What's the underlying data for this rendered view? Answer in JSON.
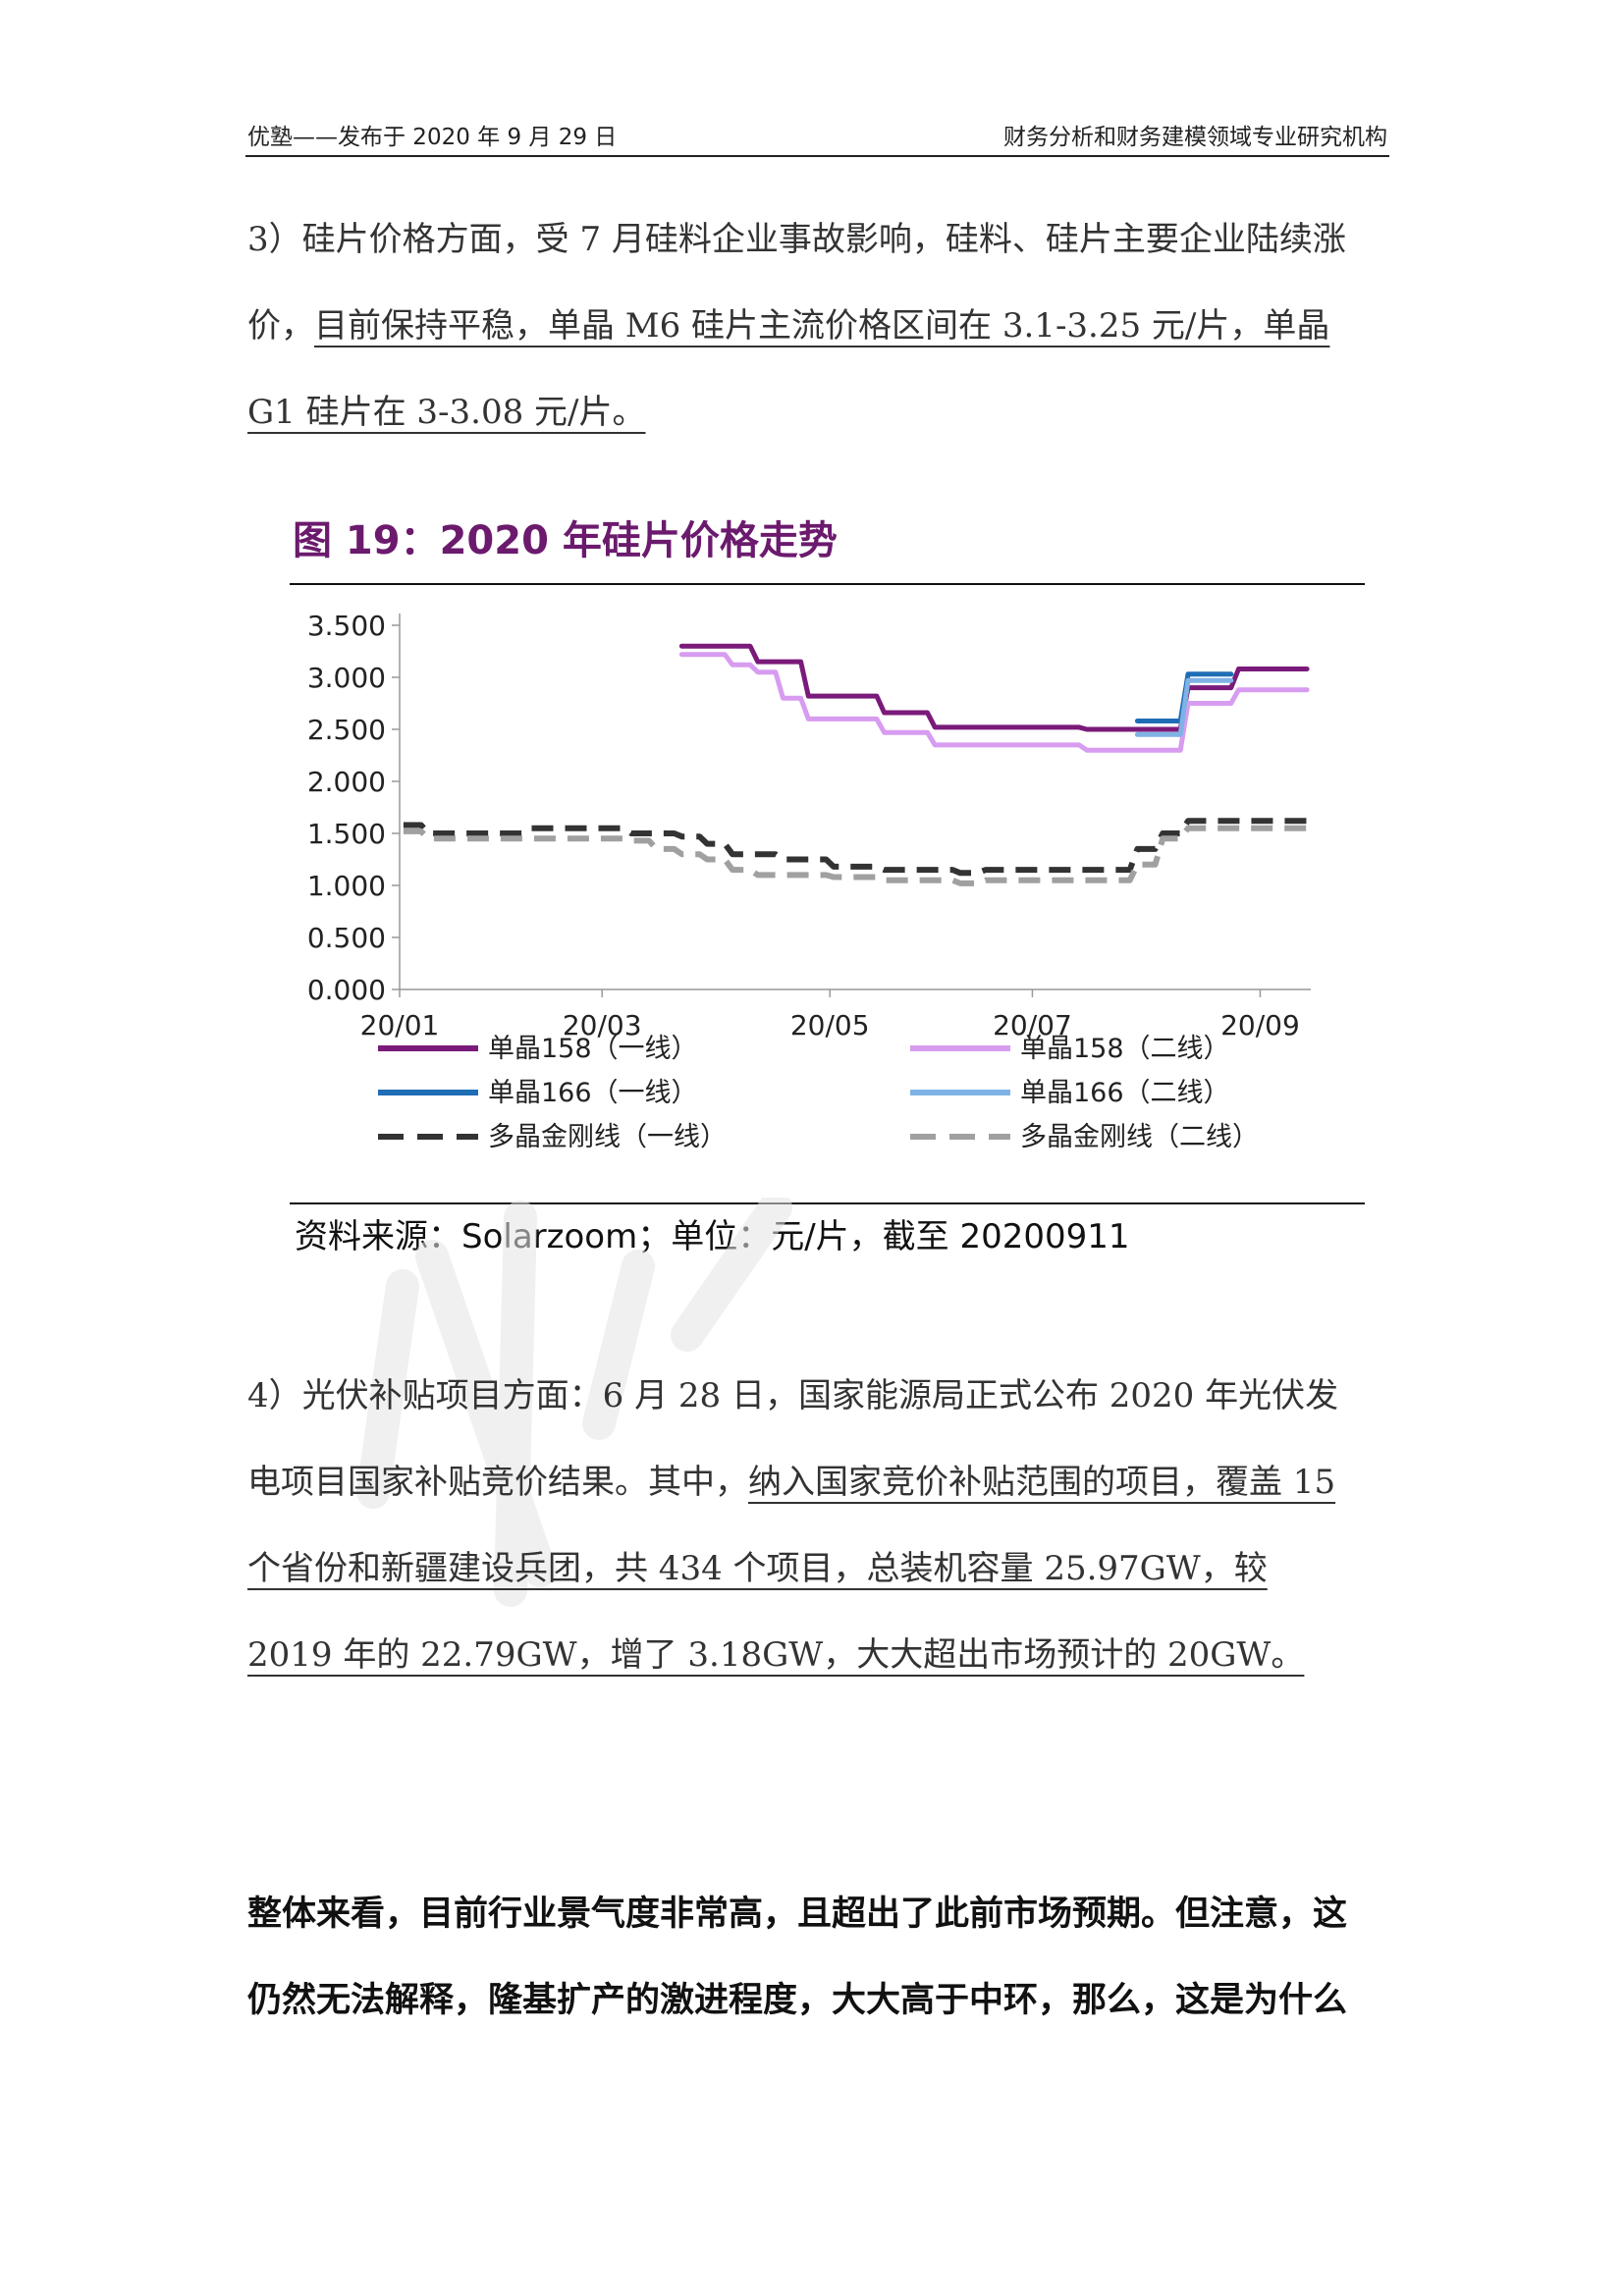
{
  "header": {
    "left": "优塾——发布于 2020 年 9 月 29 日",
    "right": "财务分析和财务建模领域专业研究机构"
  },
  "para3": {
    "plain": "3）硅片价格方面，受 7 月硅料企业事故影响，硅料、硅片主要企业陆续涨价，",
    "underlined": "目前保持平稳，单晶 M6 硅片主流价格区间在 3.1-3.25 元/片，单晶 G1 硅片在 3-3.08 元/片。"
  },
  "figure": {
    "title": "图 19：2020 年硅片价格走势",
    "source": "资料来源：Solarzoom；单位：元/片，截至 20200911"
  },
  "chart_data": {
    "type": "line",
    "x": [
      "20/01/02",
      "20/01/09",
      "20/01/16",
      "20/01/23",
      "20/02/06",
      "20/02/13",
      "20/02/20",
      "20/02/27",
      "20/03/05",
      "20/03/12",
      "20/03/19",
      "20/03/26",
      "20/04/02",
      "20/04/09",
      "20/04/16",
      "20/04/23",
      "20/04/30",
      "20/05/07",
      "20/05/14",
      "20/05/21",
      "20/05/28",
      "20/06/04",
      "20/06/11",
      "20/06/18",
      "20/06/25",
      "20/07/02",
      "20/07/09",
      "20/07/16",
      "20/07/23",
      "20/07/30",
      "20/08/06",
      "20/08/13",
      "20/08/20",
      "20/08/27",
      "20/09/03",
      "20/09/10"
    ],
    "x_ticks": [
      "20/01",
      "20/03",
      "20/05",
      "20/07",
      "20/09"
    ],
    "series": [
      {
        "name": "单晶158（一线）",
        "color": "#7a1a7a",
        "dash": "solid",
        "values": [
          null,
          null,
          null,
          null,
          null,
          null,
          null,
          null,
          null,
          null,
          null,
          3.3,
          3.3,
          3.3,
          3.15,
          3.15,
          2.82,
          2.82,
          2.82,
          2.66,
          2.66,
          2.52,
          2.52,
          2.52,
          2.52,
          2.52,
          2.52,
          2.5,
          2.5,
          2.5,
          2.5,
          2.9,
          2.9,
          3.08,
          3.08,
          3.08
        ]
      },
      {
        "name": "单晶158（二线）",
        "color": "#d79cf0",
        "dash": "solid",
        "values": [
          null,
          null,
          null,
          null,
          null,
          null,
          null,
          null,
          null,
          null,
          null,
          3.22,
          3.22,
          3.12,
          3.05,
          2.8,
          2.6,
          2.6,
          2.6,
          2.47,
          2.47,
          2.35,
          2.35,
          2.35,
          2.35,
          2.35,
          2.35,
          2.3,
          2.3,
          2.3,
          2.3,
          2.75,
          2.75,
          2.88,
          2.88,
          2.88
        ]
      },
      {
        "name": "单晶166（一线）",
        "color": "#1f6db5",
        "dash": "solid",
        "values": [
          null,
          null,
          null,
          null,
          null,
          null,
          null,
          null,
          null,
          null,
          null,
          null,
          null,
          null,
          null,
          null,
          null,
          null,
          null,
          null,
          null,
          null,
          null,
          null,
          null,
          null,
          null,
          null,
          null,
          2.58,
          2.58,
          3.03,
          3.03,
          null,
          null,
          null
        ]
      },
      {
        "name": "单晶166（二线）",
        "color": "#7fb2e5",
        "dash": "solid",
        "values": [
          null,
          null,
          null,
          null,
          null,
          null,
          null,
          null,
          null,
          null,
          null,
          null,
          null,
          null,
          null,
          null,
          null,
          null,
          null,
          null,
          null,
          null,
          null,
          null,
          null,
          null,
          null,
          null,
          null,
          2.45,
          2.45,
          2.97,
          2.97,
          null,
          null,
          null
        ]
      },
      {
        "name": "多晶金刚线（一线）",
        "color": "#333333",
        "dash": "dash",
        "values": [
          1.58,
          1.5,
          1.5,
          1.5,
          1.5,
          1.55,
          1.55,
          1.55,
          1.55,
          1.5,
          1.5,
          1.47,
          1.4,
          1.3,
          1.3,
          1.25,
          1.25,
          1.18,
          1.18,
          1.15,
          1.15,
          1.15,
          1.12,
          1.15,
          1.15,
          1.15,
          1.15,
          1.15,
          1.15,
          1.35,
          1.5,
          1.62,
          1.62,
          1.62,
          1.62,
          1.62
        ]
      },
      {
        "name": "多晶金刚线（二线）",
        "color": "#a0a0a0",
        "dash": "dash",
        "values": [
          1.52,
          1.45,
          1.45,
          1.45,
          1.45,
          1.45,
          1.45,
          1.45,
          1.45,
          1.43,
          1.35,
          1.3,
          1.25,
          1.15,
          1.1,
          1.1,
          1.1,
          1.08,
          1.08,
          1.05,
          1.05,
          1.05,
          1.02,
          1.05,
          1.05,
          1.05,
          1.05,
          1.05,
          1.05,
          1.2,
          1.45,
          1.55,
          1.55,
          1.55,
          1.55,
          1.55
        ]
      }
    ],
    "y_ticks": [
      "0.000",
      "0.500",
      "1.000",
      "1.500",
      "2.000",
      "2.500",
      "3.000",
      "3.500"
    ],
    "ylim": [
      0,
      3.5
    ]
  },
  "para4": {
    "plain": "4）光伏补贴项目方面：6 月 28 日，国家能源局正式公布 2020 年光伏发电项目国家补贴竞价结果。其中，",
    "underlined": "纳入国家竞价补贴范围的项目，覆盖 15 个省份和新疆建设兵团，共 434 个项目，总装机容量 25.97GW，较 2019 年的 22.79GW，增了 3.18GW，大大超出市场预计的 20GW。"
  },
  "para5": {
    "text": "整体来看，目前行业景气度非常高，且超出了此前市场预期。但注意，这仍然无法解释，隆基扩产的激进程度，大大高于中环，那么，这是为什么"
  }
}
